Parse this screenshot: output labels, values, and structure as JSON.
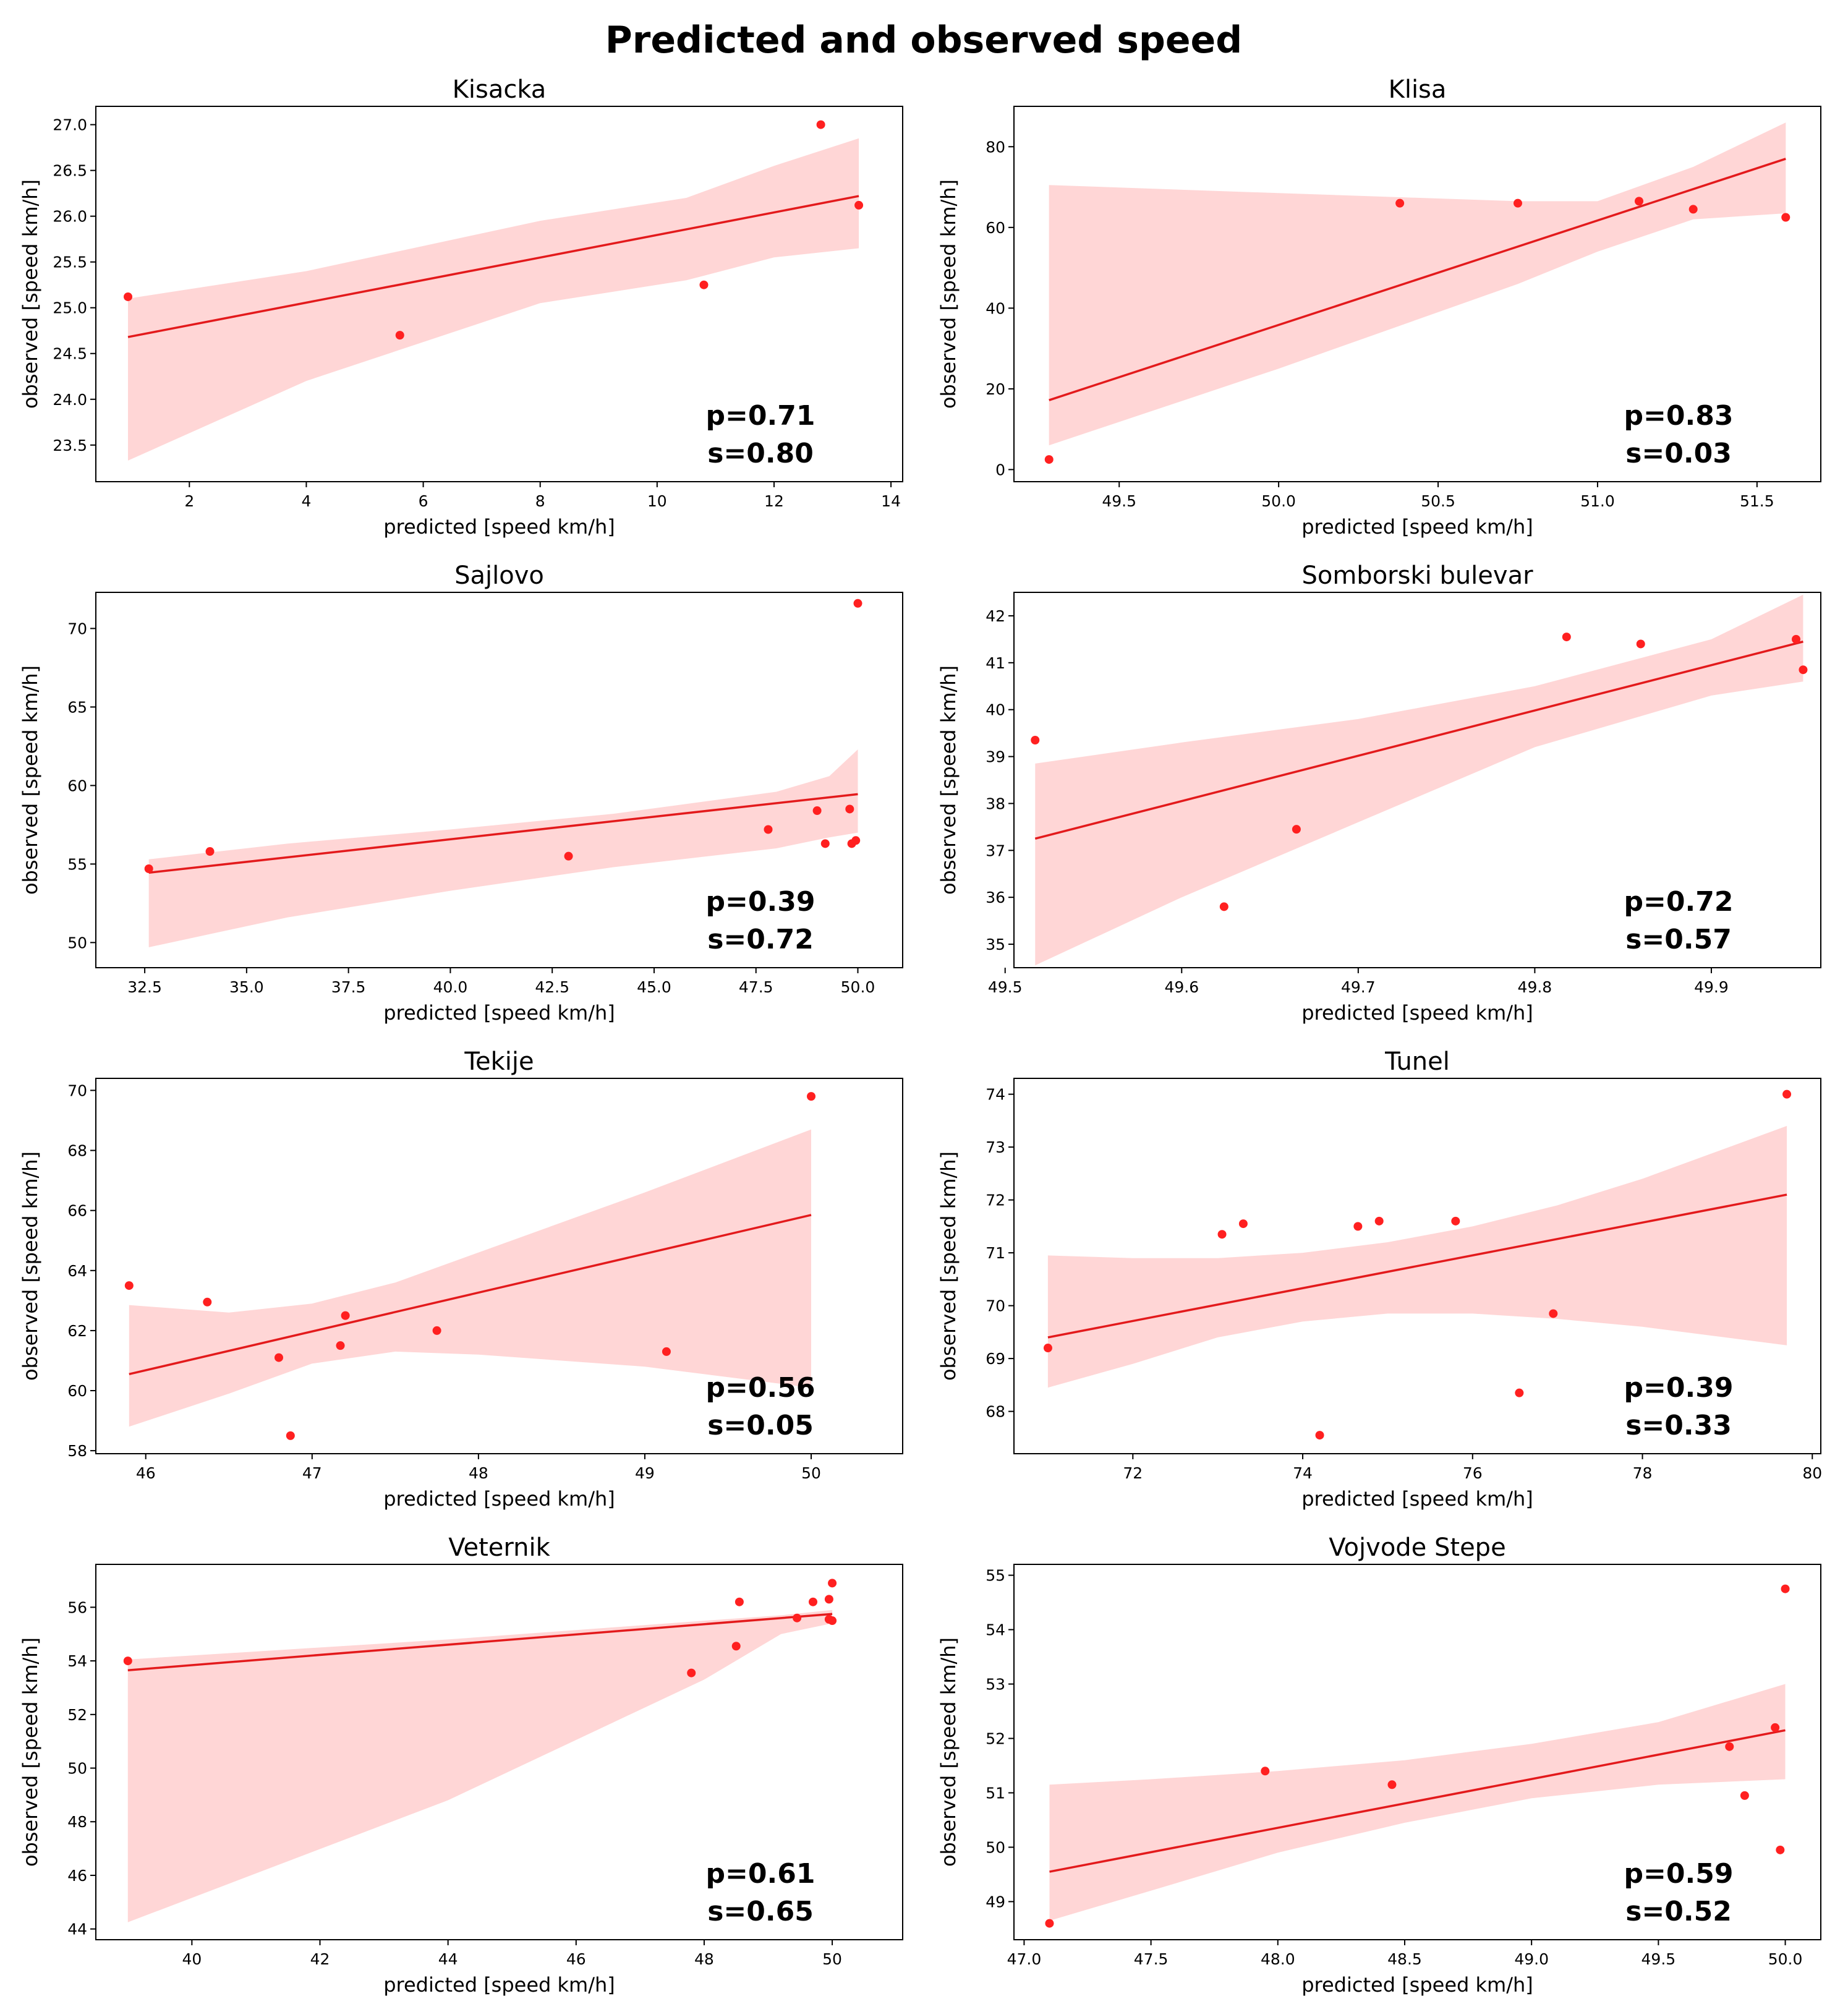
{
  "title": "Predicted and observed speed",
  "colors": {
    "points": "#ff2020",
    "line": "#e31a1c",
    "band": "#ffd6d6",
    "axes": "#000000"
  },
  "chart_data": [
    {
      "type": "scatter",
      "title": "Kisacka",
      "xlabel": "predicted [speed km/h]",
      "ylabel": "observed [speed km/h]",
      "xlim": [
        0.4,
        14.2
      ],
      "ylim": [
        23.1,
        27.2
      ],
      "xticks": [
        2,
        4,
        6,
        8,
        10,
        12,
        14
      ],
      "xtick_labels": [
        "2",
        "4",
        "6",
        "8",
        "10",
        "12",
        "14"
      ],
      "yticks": [
        23.5,
        24.0,
        24.5,
        25.0,
        25.5,
        26.0,
        26.5,
        27.0
      ],
      "ytick_labels": [
        "23.5",
        "24.0",
        "24.5",
        "25.0",
        "25.5",
        "26.0",
        "26.5",
        "27.0"
      ],
      "x": [
        0.95,
        5.6,
        10.8,
        12.8,
        13.45
      ],
      "y": [
        25.12,
        24.7,
        25.25,
        27.0,
        26.12
      ],
      "fit": {
        "x": [
          0.95,
          13.45
        ],
        "y": [
          24.68,
          26.22
        ]
      },
      "band": {
        "x": [
          0.95,
          4,
          8,
          10.5,
          12,
          13.45
        ],
        "upper": [
          25.1,
          25.4,
          25.95,
          26.2,
          26.55,
          26.85
        ],
        "lower": [
          23.33,
          24.2,
          25.05,
          25.3,
          25.55,
          25.65
        ]
      },
      "stats": [
        "p=0.71",
        "s=0.80"
      ]
    },
    {
      "type": "scatter",
      "title": "Klisa",
      "xlabel": "predicted [speed km/h]",
      "ylabel": "observed [speed km/h]",
      "xlim": [
        49.17,
        51.7
      ],
      "ylim": [
        -3,
        90
      ],
      "xticks": [
        49.5,
        50.0,
        50.5,
        51.0,
        51.5
      ],
      "xtick_labels": [
        "49.5",
        "50.0",
        "50.5",
        "51.0",
        "51.5"
      ],
      "yticks": [
        0,
        20,
        40,
        60,
        80
      ],
      "ytick_labels": [
        "0",
        "20",
        "40",
        "60",
        "80"
      ],
      "x": [
        49.28,
        50.38,
        50.75,
        51.13,
        51.3,
        51.59
      ],
      "y": [
        2.5,
        66,
        66,
        66.5,
        64.5,
        62.5
      ],
      "fit": {
        "x": [
          49.28,
          51.59
        ],
        "y": [
          17.2,
          77
        ]
      },
      "band": {
        "x": [
          49.28,
          50.0,
          50.75,
          51.0,
          51.3,
          51.59
        ],
        "upper": [
          70.5,
          68.5,
          66.5,
          66.5,
          75.0,
          86.0
        ],
        "lower": [
          6.0,
          25.0,
          46.0,
          54.0,
          62.0,
          63.5
        ]
      },
      "stats": [
        "p=0.83",
        "s=0.03"
      ]
    },
    {
      "type": "scatter",
      "title": "Sajlovo",
      "xlabel": "predicted [speed km/h]",
      "ylabel": "observed [speed km/h]",
      "xlim": [
        31.3,
        51.1
      ],
      "ylim": [
        48.4,
        72.3
      ],
      "xticks": [
        32.5,
        35.0,
        37.5,
        40.0,
        42.5,
        45.0,
        47.5,
        50.0
      ],
      "xtick_labels": [
        "32.5",
        "35.0",
        "37.5",
        "40.0",
        "42.5",
        "45.0",
        "47.5",
        "50.0"
      ],
      "yticks": [
        50,
        55,
        60,
        65,
        70
      ],
      "ytick_labels": [
        "50",
        "55",
        "60",
        "65",
        "70"
      ],
      "x": [
        32.6,
        34.1,
        42.9,
        47.8,
        49.0,
        49.2,
        49.8,
        49.85,
        49.95,
        50.0
      ],
      "y": [
        54.7,
        55.8,
        55.5,
        57.2,
        58.4,
        56.3,
        58.5,
        56.3,
        56.5,
        71.6
      ],
      "fit": {
        "x": [
          32.6,
          50.0
        ],
        "y": [
          54.45,
          59.45
        ]
      },
      "band": {
        "x": [
          32.6,
          36,
          40,
          44,
          48,
          49.3,
          50.0
        ],
        "upper": [
          55.3,
          56.3,
          57.2,
          58.2,
          59.6,
          60.6,
          62.3
        ],
        "lower": [
          49.7,
          51.6,
          53.3,
          54.8,
          56.0,
          56.7,
          57.0
        ]
      },
      "stats": [
        "p=0.39",
        "s=0.72"
      ]
    },
    {
      "type": "scatter",
      "title": "Somborski bulevar",
      "xlabel": "predicted [speed km/h]",
      "ylabel": "observed [speed km/h]",
      "xlim": [
        49.505,
        49.962
      ],
      "ylim": [
        34.5,
        42.5
      ],
      "xticks": [
        49.5,
        49.6,
        49.7,
        49.8,
        49.9
      ],
      "xtick_labels": [
        "49.5",
        "49.6",
        "49.7",
        "49.8",
        "49.9"
      ],
      "yticks": [
        35,
        36,
        37,
        38,
        39,
        40,
        41,
        42
      ],
      "ytick_labels": [
        "35",
        "36",
        "37",
        "38",
        "39",
        "40",
        "41",
        "42"
      ],
      "x": [
        49.517,
        49.624,
        49.665,
        49.818,
        49.86,
        49.948,
        49.952
      ],
      "y": [
        39.35,
        35.8,
        37.45,
        41.55,
        41.4,
        41.5,
        40.85
      ],
      "fit": {
        "x": [
          49.517,
          49.952
        ],
        "y": [
          37.25,
          41.45
        ]
      },
      "band": {
        "x": [
          49.517,
          49.6,
          49.7,
          49.8,
          49.9,
          49.952
        ],
        "upper": [
          38.85,
          39.3,
          39.8,
          40.5,
          41.5,
          42.45
        ],
        "lower": [
          34.55,
          36.0,
          37.6,
          39.2,
          40.3,
          40.6
        ]
      },
      "stats": [
        "p=0.72",
        "s=0.57"
      ]
    },
    {
      "type": "scatter",
      "title": "Tekije",
      "xlabel": "predicted [speed km/h]",
      "ylabel": "observed [speed km/h]",
      "xlim": [
        45.7,
        50.55
      ],
      "ylim": [
        57.9,
        70.4
      ],
      "xticks": [
        46,
        47,
        48,
        49,
        50
      ],
      "xtick_labels": [
        "46",
        "47",
        "48",
        "49",
        "50"
      ],
      "yticks": [
        58,
        60,
        62,
        64,
        66,
        68,
        70
      ],
      "ytick_labels": [
        "58",
        "60",
        "62",
        "64",
        "66",
        "68",
        "70"
      ],
      "x": [
        45.9,
        46.37,
        46.8,
        46.87,
        47.17,
        47.2,
        47.75,
        49.13,
        50.0
      ],
      "y": [
        63.5,
        62.95,
        61.1,
        58.5,
        61.5,
        62.5,
        62.0,
        61.3,
        69.8
      ],
      "fit": {
        "x": [
          45.9,
          50.0
        ],
        "y": [
          60.55,
          65.85
        ]
      },
      "band": {
        "x": [
          45.9,
          46.5,
          47.0,
          47.5,
          48.0,
          49.0,
          50.0
        ],
        "upper": [
          62.85,
          62.6,
          62.9,
          63.6,
          64.6,
          66.6,
          68.7
        ],
        "lower": [
          58.8,
          59.9,
          60.9,
          61.3,
          61.2,
          60.8,
          60.1
        ]
      },
      "stats": [
        "p=0.56",
        "s=0.05"
      ]
    },
    {
      "type": "scatter",
      "title": "Tunel",
      "xlabel": "predicted [speed km/h]",
      "ylabel": "observed [speed km/h]",
      "xlim": [
        70.6,
        80.1
      ],
      "ylim": [
        67.2,
        74.3
      ],
      "xticks": [
        72,
        74,
        76,
        78,
        80
      ],
      "xtick_labels": [
        "72",
        "74",
        "76",
        "78",
        "80"
      ],
      "yticks": [
        68,
        69,
        70,
        71,
        72,
        73,
        74
      ],
      "ytick_labels": [
        "68",
        "69",
        "70",
        "71",
        "72",
        "73",
        "74"
      ],
      "x": [
        71.0,
        73.05,
        73.3,
        74.2,
        74.65,
        74.9,
        75.8,
        76.55,
        76.95,
        79.7
      ],
      "y": [
        69.2,
        71.35,
        71.55,
        67.55,
        71.5,
        71.6,
        71.6,
        68.35,
        69.85,
        74.0
      ],
      "fit": {
        "x": [
          71.0,
          79.7
        ],
        "y": [
          69.4,
          72.1
        ]
      },
      "band": {
        "x": [
          71.0,
          72.0,
          73.0,
          74.0,
          75.0,
          76.0,
          77.0,
          78.0,
          79.7
        ],
        "upper": [
          70.95,
          70.9,
          70.9,
          71.0,
          71.2,
          71.5,
          71.9,
          72.4,
          73.4
        ],
        "lower": [
          68.45,
          68.9,
          69.4,
          69.7,
          69.85,
          69.85,
          69.75,
          69.6,
          69.25
        ]
      },
      "stats": [
        "p=0.39",
        "s=0.33"
      ]
    },
    {
      "type": "scatter",
      "title": "Veternik",
      "xlabel": "predicted [speed km/h]",
      "ylabel": "observed [speed km/h]",
      "xlim": [
        38.5,
        51.1
      ],
      "ylim": [
        43.6,
        57.6
      ],
      "xticks": [
        40,
        42,
        44,
        46,
        48,
        50
      ],
      "xtick_labels": [
        "40",
        "42",
        "44",
        "46",
        "48",
        "50"
      ],
      "yticks": [
        44,
        46,
        48,
        50,
        52,
        54,
        56
      ],
      "ytick_labels": [
        "44",
        "46",
        "48",
        "50",
        "52",
        "54",
        "56"
      ],
      "x": [
        39.0,
        47.8,
        48.5,
        48.55,
        49.45,
        49.7,
        49.95,
        49.95,
        50.0,
        50.0
      ],
      "y": [
        54.0,
        53.55,
        54.55,
        56.2,
        55.6,
        56.2,
        56.3,
        55.55,
        55.5,
        56.9
      ],
      "fit": {
        "x": [
          39.0,
          50.0
        ],
        "y": [
          53.65,
          55.75
        ]
      },
      "band": {
        "x": [
          39.0,
          44.0,
          48.0,
          49.2,
          50.0
        ],
        "upper": [
          54.05,
          54.8,
          55.5,
          55.7,
          55.9
        ],
        "lower": [
          44.25,
          48.8,
          53.3,
          55.0,
          55.4
        ]
      },
      "stats": [
        "p=0.61",
        "s=0.65"
      ]
    },
    {
      "type": "scatter",
      "title": "Vojvode Stepe",
      "xlabel": "predicted [speed km/h]",
      "ylabel": "observed [speed km/h]",
      "xlim": [
        46.96,
        50.14
      ],
      "ylim": [
        48.3,
        55.2
      ],
      "xticks": [
        47.0,
        47.5,
        48.0,
        48.5,
        49.0,
        49.5,
        50.0
      ],
      "xtick_labels": [
        "47.0",
        "47.5",
        "48.0",
        "48.5",
        "49.0",
        "49.5",
        "50.0"
      ],
      "yticks": [
        49,
        50,
        51,
        52,
        53,
        54,
        55
      ],
      "ytick_labels": [
        "49",
        "50",
        "51",
        "52",
        "53",
        "54",
        "55"
      ],
      "x": [
        47.1,
        47.95,
        48.45,
        49.78,
        49.84,
        49.96,
        49.98,
        50.0
      ],
      "y": [
        48.6,
        51.4,
        51.15,
        51.85,
        50.95,
        52.2,
        49.95,
        54.75
      ],
      "fit": {
        "x": [
          47.1,
          50.0
        ],
        "y": [
          49.55,
          52.15
        ]
      },
      "band": {
        "x": [
          47.1,
          47.5,
          48.0,
          48.5,
          49.0,
          49.5,
          50.0
        ],
        "upper": [
          51.15,
          51.25,
          51.4,
          51.6,
          51.9,
          52.3,
          53.0
        ],
        "lower": [
          48.65,
          49.2,
          49.9,
          50.45,
          50.9,
          51.15,
          51.25
        ]
      },
      "stats": [
        "p=0.59",
        "s=0.52"
      ]
    }
  ]
}
